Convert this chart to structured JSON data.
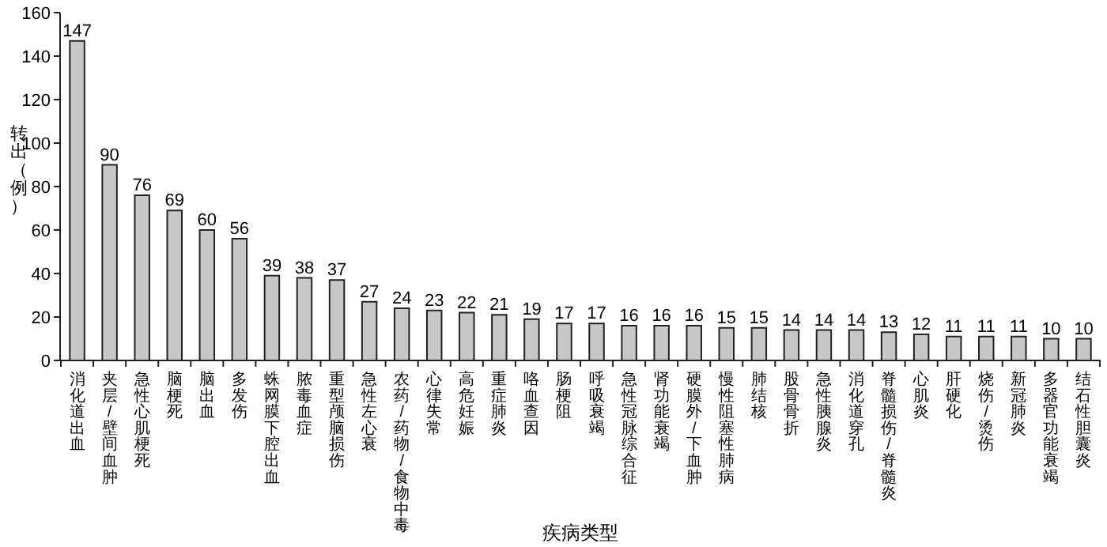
{
  "chart_data": {
    "type": "bar",
    "xlabel": "疾病类型",
    "ylabel": "转出（例）",
    "categories": [
      "消化道出血",
      "夹层/壁间血肿",
      "急性心肌梗死",
      "脑梗死",
      "脑出血",
      "多发伤",
      "蛛网膜下腔出血",
      "脓毒血症",
      "重型颅脑损伤",
      "急性左心衰",
      "农药/药物/食物中毒",
      "心律失常",
      "高危妊娠",
      "重症肺炎",
      "咯血查因",
      "肠梗阻",
      "呼吸衰竭",
      "急性冠脉综合征",
      "肾功能衰竭",
      "硬膜外/下血肿",
      "慢性阻塞性肺病",
      "肺结核",
      "股骨骨折",
      "急性胰腺炎",
      "消化道穿孔",
      "脊髓损伤/脊髓炎",
      "心肌炎",
      "肝硬化",
      "烧伤/烫伤",
      "新冠肺炎",
      "多器官功能衰竭",
      "结石性胆囊炎"
    ],
    "values": [
      147,
      90,
      76,
      69,
      60,
      56,
      39,
      38,
      37,
      27,
      24,
      23,
      22,
      21,
      19,
      17,
      17,
      16,
      16,
      16,
      15,
      15,
      14,
      14,
      14,
      13,
      12,
      11,
      11,
      11,
      10,
      10
    ],
    "color": "#c8c8c8",
    "ylim": [
      0,
      160
    ],
    "yticks": [
      0,
      20,
      40,
      60,
      80,
      100,
      120,
      140,
      160
    ],
    "data_labels": true,
    "grid": false
  }
}
